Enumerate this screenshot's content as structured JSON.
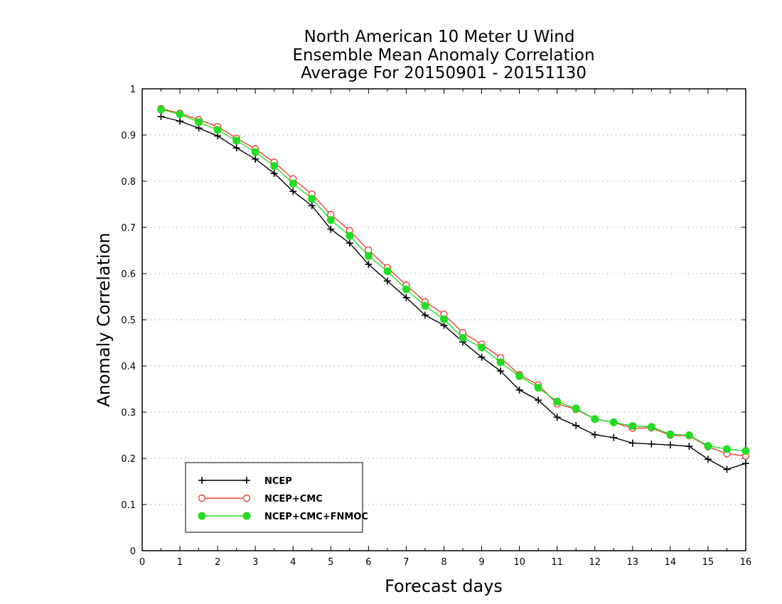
{
  "chart_data": {
    "type": "line",
    "title": [
      "North American 10 Meter U Wind",
      "Ensemble Mean Anomaly Correlation",
      "Average For 20150901 - 20151130"
    ],
    "xlabel": "Forecast days",
    "ylabel": "Anomaly Correlation",
    "xlim": [
      0,
      16
    ],
    "ylim": [
      0,
      1
    ],
    "xticks": [
      "0",
      "1",
      "2",
      "3",
      "4",
      "5",
      "6",
      "7",
      "8",
      "9",
      "10",
      "11",
      "12",
      "13",
      "14",
      "15",
      "16"
    ],
    "yticks": [
      "0",
      "0.1",
      "0.2",
      "0.3",
      "0.4",
      "0.5",
      "0.6",
      "0.7",
      "0.8",
      "0.9",
      "1"
    ],
    "grid": "dotted horizontal",
    "legend_position": "bottom-left",
    "x": [
      0.5,
      1,
      1.5,
      2,
      2.5,
      3,
      3.5,
      4,
      4.5,
      5,
      5.5,
      6,
      6.5,
      7,
      7.5,
      8,
      8.5,
      9,
      9.5,
      10,
      10.5,
      11,
      11.5,
      12,
      12.5,
      13,
      13.5,
      14,
      14.5,
      15,
      15.5,
      16
    ],
    "series": [
      {
        "name": "NCEP",
        "color": "#000000",
        "marker": "plus",
        "values": [
          0.94,
          0.93,
          0.915,
          0.898,
          0.872,
          0.848,
          0.817,
          0.778,
          0.747,
          0.696,
          0.666,
          0.62,
          0.584,
          0.548,
          0.51,
          0.488,
          0.452,
          0.419,
          0.389,
          0.348,
          0.326,
          0.289,
          0.271,
          0.251,
          0.245,
          0.233,
          0.231,
          0.229,
          0.226,
          0.198,
          0.176,
          0.189
        ]
      },
      {
        "name": "NCEP+CMC",
        "color": "#e8413a",
        "marker": "open-circle",
        "values": [
          0.957,
          0.947,
          0.933,
          0.918,
          0.893,
          0.87,
          0.841,
          0.805,
          0.772,
          0.728,
          0.693,
          0.651,
          0.613,
          0.575,
          0.539,
          0.512,
          0.472,
          0.447,
          0.418,
          0.381,
          0.359,
          0.318,
          0.306,
          0.285,
          0.278,
          0.265,
          0.266,
          0.25,
          0.249,
          0.225,
          0.21,
          0.205
        ]
      },
      {
        "name": "NCEP+CMC+FNMOC",
        "color": "#22dd22",
        "marker": "filled-circle",
        "values": [
          0.955,
          0.945,
          0.928,
          0.911,
          0.888,
          0.863,
          0.833,
          0.795,
          0.762,
          0.716,
          0.682,
          0.638,
          0.605,
          0.566,
          0.53,
          0.501,
          0.461,
          0.44,
          0.408,
          0.378,
          0.353,
          0.323,
          0.308,
          0.285,
          0.278,
          0.27,
          0.268,
          0.252,
          0.25,
          0.227,
          0.22,
          0.216
        ]
      }
    ]
  }
}
